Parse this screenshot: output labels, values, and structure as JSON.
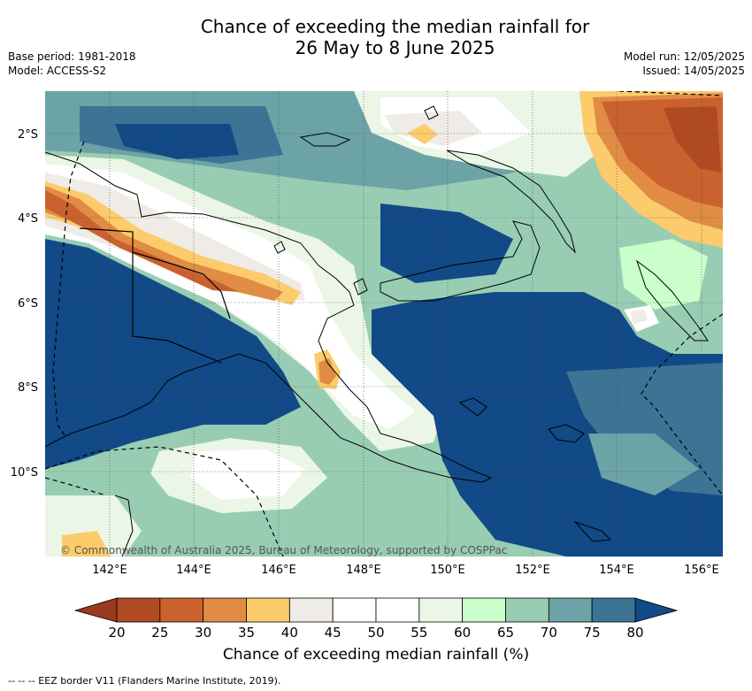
{
  "title": {
    "line1": "Chance of exceeding the median rainfall for",
    "line2": "26 May to 8 June 2025"
  },
  "meta_left": {
    "base_period": "Base period: 1981-2018",
    "model": "Model: ACCESS-S2"
  },
  "meta_right": {
    "model_run": "Model run: 12/05/2025",
    "issued": "Issued: 14/05/2025"
  },
  "map": {
    "lat_labels": [
      "2°S",
      "4°S",
      "6°S",
      "8°S",
      "10°S"
    ],
    "lon_labels": [
      "142°E",
      "144°E",
      "146°E",
      "148°E",
      "150°E",
      "152°E",
      "154°E",
      "156°E"
    ],
    "copyright": "© Commonwealth of Australia 2025, Bureau of Meteorology, supported by COSPPac"
  },
  "colorbar": {
    "ticks": [
      "20",
      "25",
      "30",
      "35",
      "40",
      "45",
      "50",
      "55",
      "60",
      "65",
      "70",
      "75",
      "80"
    ],
    "colors": [
      "#b04a22",
      "#c9622e",
      "#e08c45",
      "#fccb6c",
      "#efebe6",
      "#ffffff",
      "#ffffff",
      "#ebf6e6",
      "#cafecb",
      "#99cdb3",
      "#6ca3a6",
      "#3d7496"
    ],
    "low_extend_color": "#9a3a1e",
    "high_extend_color": "#114a86",
    "title": "Chance of exceeding median rainfall (%)"
  },
  "footer": "--  --  -- EEZ border V11 (Flanders Marine Institute, 2019).",
  "palette": {
    "deep_blue": "#114a86",
    "blue": "#3d7496",
    "teal": "#6ca3a6",
    "sage": "#99cdb3",
    "mint": "#cafecb",
    "pale_green": "#ebf6e6",
    "white": "#ffffff",
    "beige": "#efebe6",
    "yellow": "#fccb6c",
    "orange": "#e08c45",
    "rust": "#c9622e",
    "brown": "#b04a22"
  }
}
